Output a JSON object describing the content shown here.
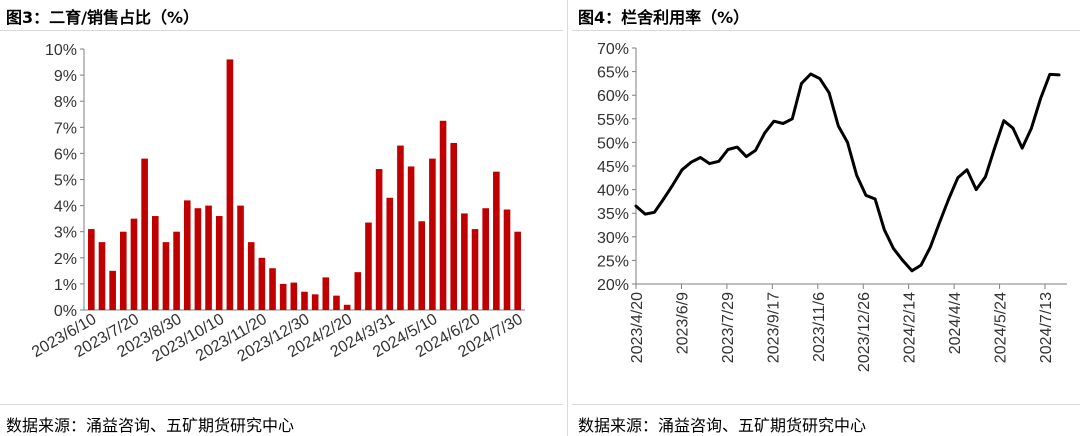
{
  "panels": [
    {
      "title": "图3：二育/销售占比（%）",
      "source": "数据来源：涌益咨询、五矿期货研究中心"
    },
    {
      "title": "图4：栏舍利用率（%）",
      "source": "数据来源：涌益咨询、五矿期货研究中心"
    }
  ],
  "chart_data": [
    {
      "type": "bar",
      "title": "图3：二育/销售占比（%）",
      "color": "#c00000",
      "ylim": [
        0,
        10
      ],
      "y_ticks": [
        "0%",
        "1%",
        "2%",
        "3%",
        "4%",
        "5%",
        "6%",
        "7%",
        "8%",
        "9%",
        "10%"
      ],
      "x_tick_labels": [
        "2023/6/10",
        "2023/7/20",
        "2023/8/30",
        "2023/10/10",
        "2023/11/20",
        "2023/12/30",
        "2024/2/20",
        "2024/3/31",
        "2024/5/10",
        "2024/6/20",
        "2024/7/30"
      ],
      "values": [
        3.1,
        2.6,
        1.5,
        3.0,
        3.5,
        5.8,
        3.6,
        2.6,
        3.0,
        4.2,
        3.9,
        4.0,
        3.6,
        9.6,
        4.0,
        2.6,
        2.0,
        1.6,
        1.0,
        1.05,
        0.7,
        0.6,
        1.25,
        0.55,
        0.2,
        1.45,
        3.35,
        5.4,
        4.3,
        6.3,
        5.5,
        3.4,
        5.8,
        7.25,
        6.4,
        3.7,
        3.1,
        3.9,
        5.3,
        3.85,
        3.0
      ],
      "grid": false
    },
    {
      "type": "line",
      "title": "图4：栏舍利用率（%）",
      "color": "#000000",
      "ylim": [
        20,
        70
      ],
      "y_ticks": [
        "20%",
        "25%",
        "30%",
        "35%",
        "40%",
        "45%",
        "50%",
        "55%",
        "60%",
        "65%",
        "70%"
      ],
      "x_tick_labels": [
        "2023/4/20",
        "2023/6/9",
        "2023/7/29",
        "2023/9/17",
        "2023/11/6",
        "2023/12/26",
        "2024/2/14",
        "2024/4/4",
        "2024/5/24",
        "2024/7/13"
      ],
      "values": [
        36.5,
        34.8,
        35.2,
        38.0,
        41.0,
        44.2,
        45.8,
        46.8,
        45.5,
        46.0,
        48.5,
        49.0,
        47.0,
        48.3,
        52.0,
        54.5,
        54.0,
        55.0,
        62.5,
        64.5,
        63.5,
        60.5,
        53.5,
        50.0,
        43.0,
        38.8,
        38.0,
        31.5,
        27.5,
        25.0,
        22.8,
        24.0,
        27.8,
        33.0,
        38.0,
        42.5,
        44.2,
        40.0,
        42.7,
        48.8,
        54.6,
        53.0,
        48.8,
        53.0,
        59.3,
        64.4,
        64.3
      ],
      "grid": false
    }
  ]
}
